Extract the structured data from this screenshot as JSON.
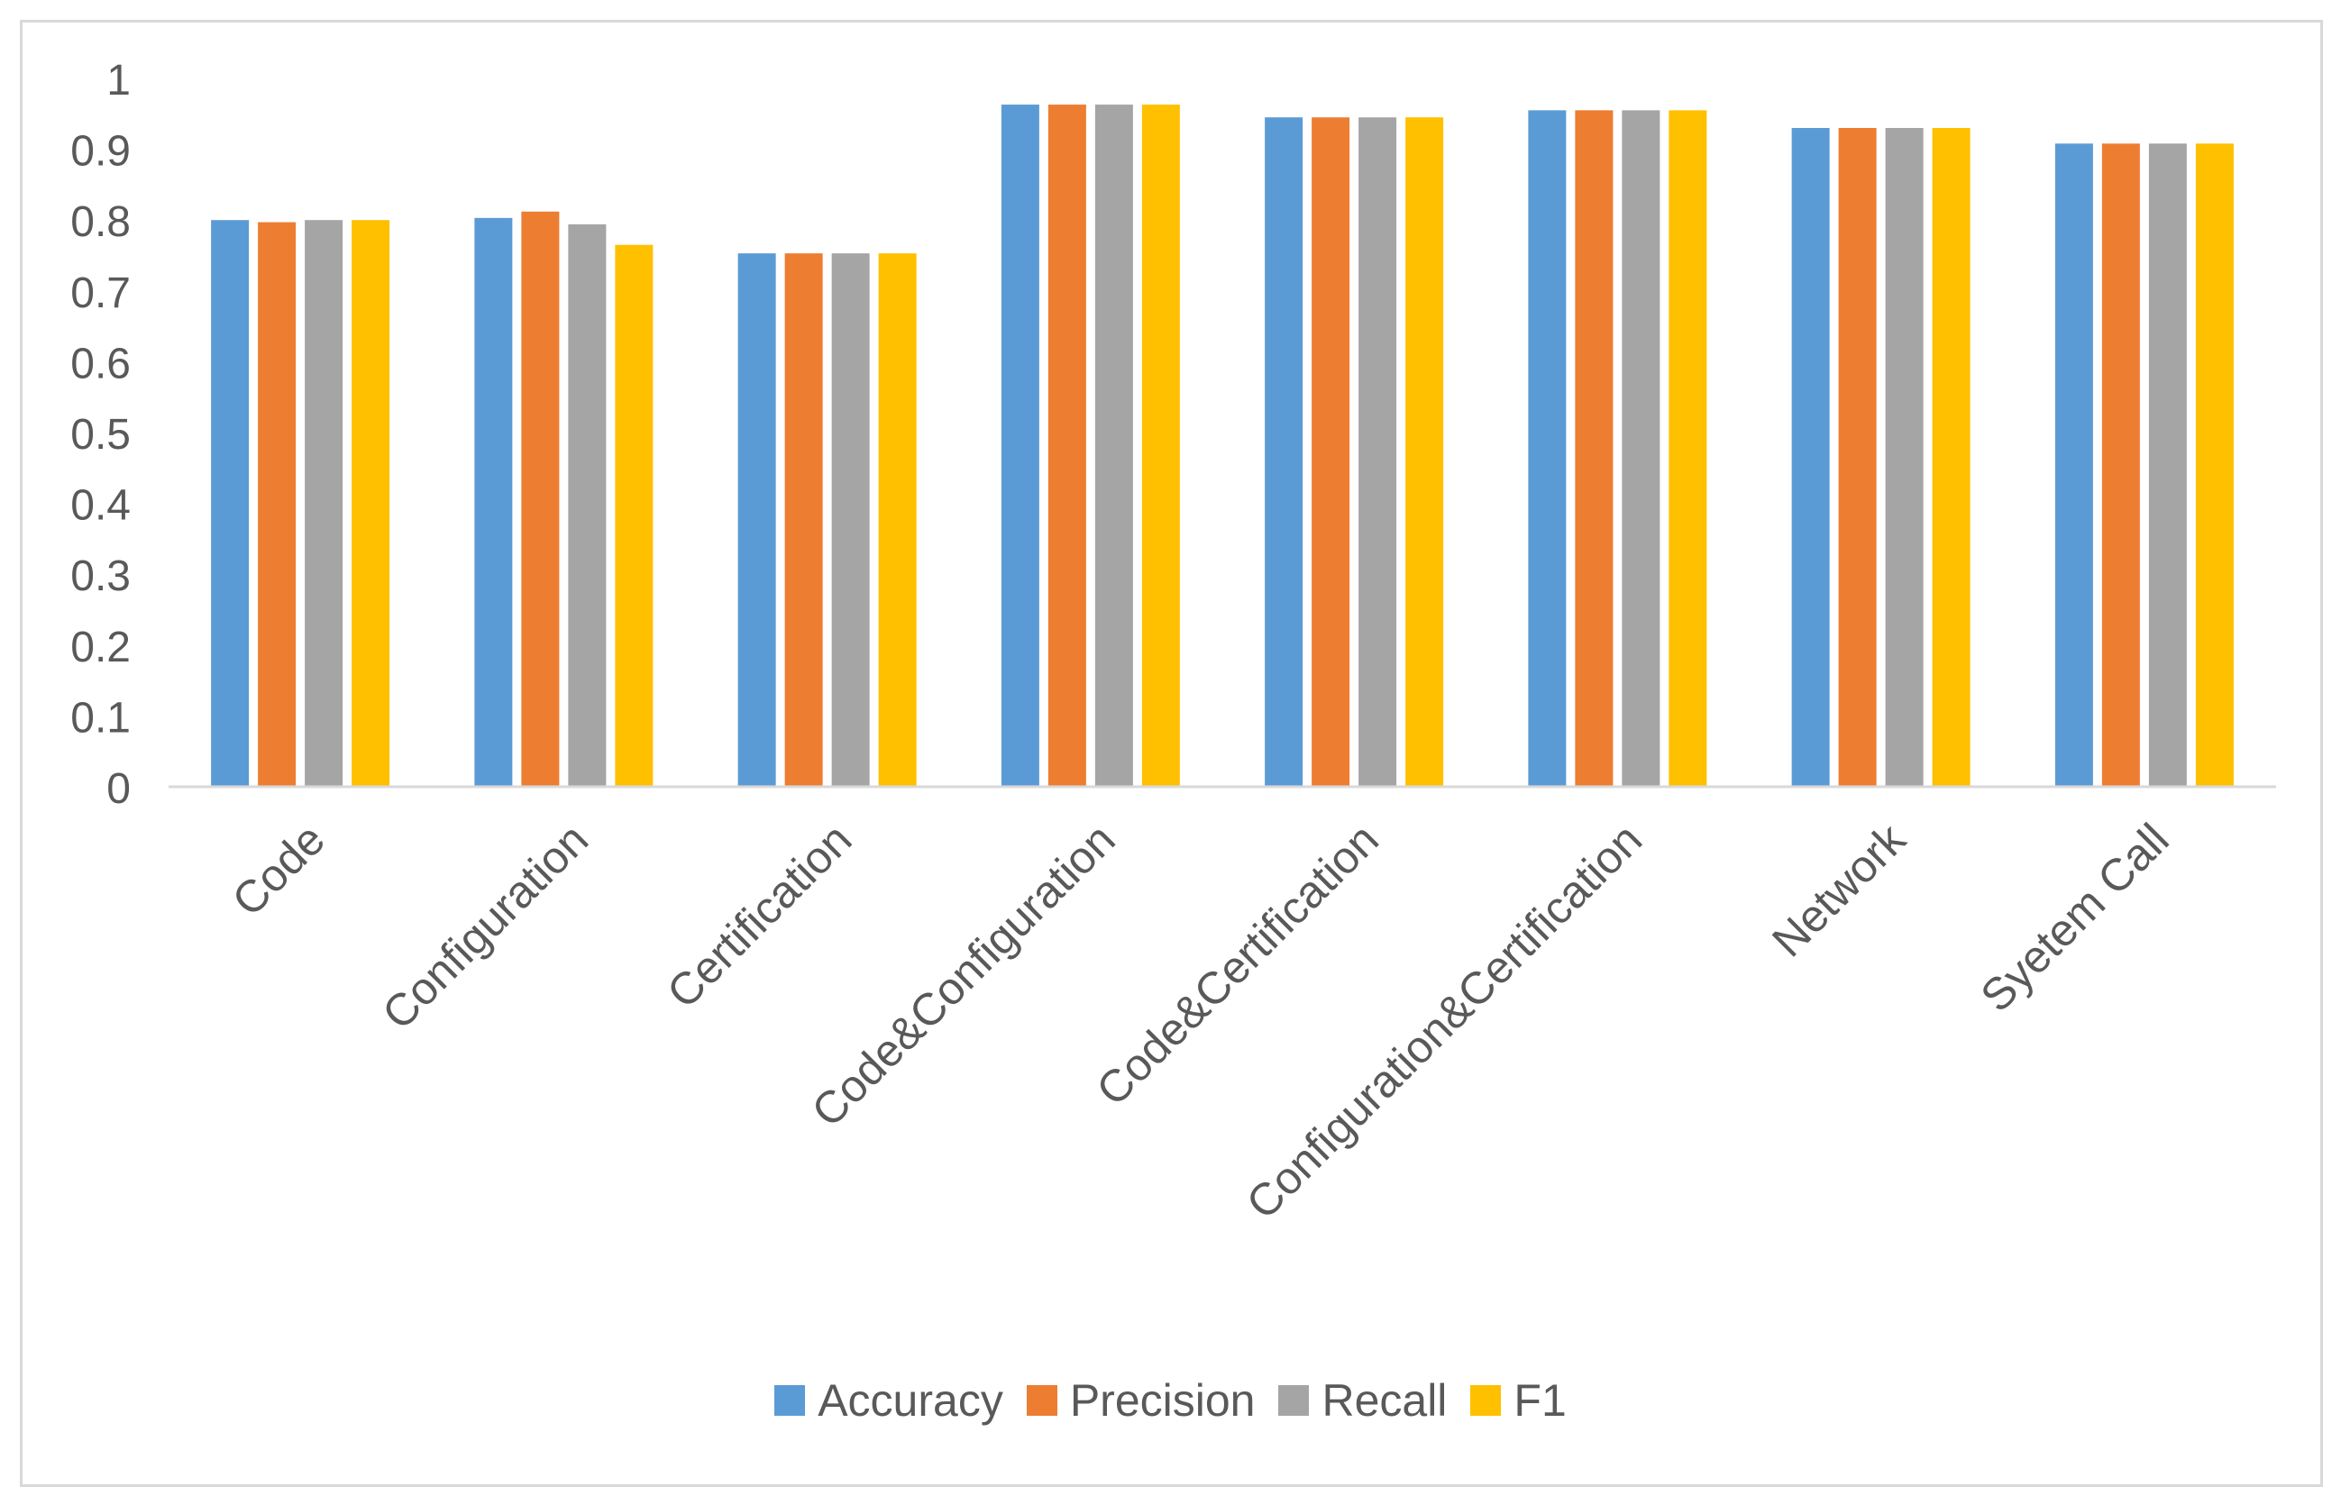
{
  "chart_data": {
    "type": "bar",
    "title": "",
    "xlabel": "",
    "ylabel": "",
    "ylim": [
      0,
      1
    ],
    "yticks": [
      "0",
      "0.1",
      "0.2",
      "0.3",
      "0.4",
      "0.5",
      "0.6",
      "0.7",
      "0.8",
      "0.9",
      "1"
    ],
    "ytick_values": [
      0,
      0.1,
      0.2,
      0.3,
      0.4,
      0.5,
      0.6,
      0.7,
      0.8,
      0.9,
      1
    ],
    "grid": false,
    "legend_position": "bottom-center",
    "categories": [
      "Code",
      "Configuration",
      "Certification",
      "Code&Configuration",
      "Code&Certification",
      "Configuration&Certification",
      "Network",
      "Syetem Call"
    ],
    "series": [
      {
        "name": "Accuracy",
        "color": "#5b9bd5",
        "values": [
          0.8,
          0.803,
          0.753,
          0.963,
          0.945,
          0.955,
          0.93,
          0.908
        ]
      },
      {
        "name": "Precision",
        "color": "#ed7d31",
        "values": [
          0.797,
          0.812,
          0.753,
          0.963,
          0.945,
          0.955,
          0.93,
          0.908
        ]
      },
      {
        "name": "Recall",
        "color": "#a5a5a5",
        "values": [
          0.8,
          0.794,
          0.753,
          0.963,
          0.945,
          0.955,
          0.93,
          0.908
        ]
      },
      {
        "name": "F1",
        "color": "#ffc000",
        "values": [
          0.8,
          0.765,
          0.753,
          0.963,
          0.945,
          0.955,
          0.93,
          0.908
        ]
      }
    ]
  }
}
